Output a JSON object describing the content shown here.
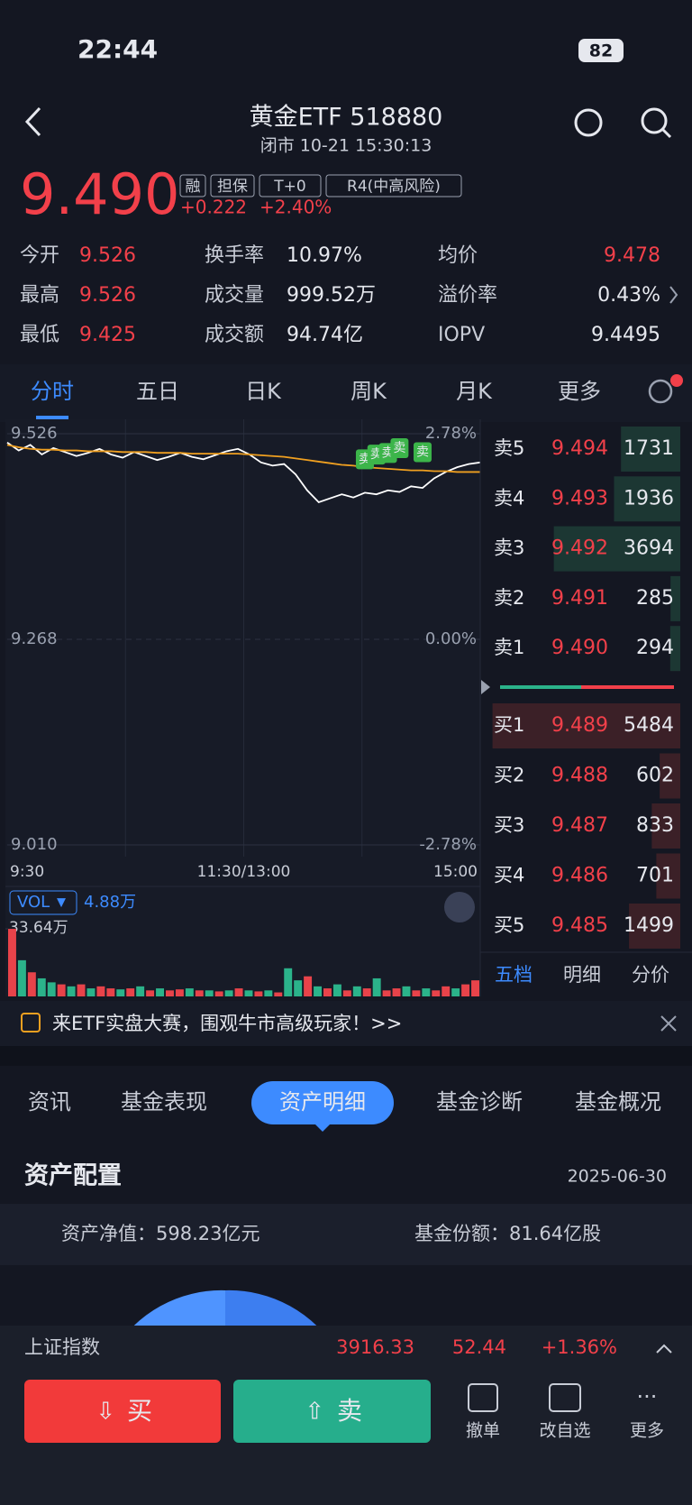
{
  "status": {
    "time": "22:44",
    "battery": "82"
  },
  "header": {
    "title": "黄金ETF 518880",
    "subtitle": "闭市 10-21 15:30:13"
  },
  "quote": {
    "price": "9.490",
    "change": "+0.222",
    "change_pct": "+2.40%",
    "tags": [
      "融",
      "担保",
      "T+0",
      "R4(中高风险)"
    ]
  },
  "stats": [
    {
      "label": "今开",
      "value": "9.526"
    },
    {
      "label": "换手率",
      "value": "10.97%"
    },
    {
      "label": "均价",
      "value": "9.478"
    },
    {
      "label": "最高",
      "value": "9.526"
    },
    {
      "label": "成交量",
      "value": "999.52万"
    },
    {
      "label": "溢价率",
      "value": "0.43%"
    },
    {
      "label": "最低",
      "value": "9.425"
    },
    {
      "label": "成交额",
      "value": "94.74亿"
    },
    {
      "label": "IOPV",
      "value": "9.4495"
    }
  ],
  "tabs": [
    "分时",
    "五日",
    "日K",
    "周K",
    "月K",
    "更多"
  ],
  "chart_data": [
    {
      "type": "line",
      "ylim": [
        9.01,
        9.526
      ],
      "yticks": [
        {
          "value": 9.526,
          "label": "9.526"
        },
        {
          "value": 9.268,
          "label": "9.268"
        },
        {
          "value": 9.01,
          "label": "9.010"
        }
      ],
      "y2lim": [
        -2.78,
        2.78
      ],
      "y2ticks": [
        {
          "value": 2.78,
          "label": "2.78%"
        },
        {
          "value": 0,
          "label": "0.00%"
        },
        {
          "value": -2.78,
          "label": "-2.78%"
        }
      ],
      "x_labels": [
        "9:30",
        "11:30/13:00",
        "15:00"
      ],
      "series": [
        {
          "color": "#ffffff",
          "values": [
            9.515,
            9.505,
            9.512,
            9.5,
            9.508,
            9.503,
            9.498,
            9.502,
            9.507,
            9.5,
            9.496,
            9.503,
            9.498,
            9.493,
            9.497,
            9.502,
            9.497,
            9.494,
            9.499,
            9.504,
            9.507,
            9.5,
            9.49,
            9.486,
            9.488,
            9.475,
            9.455,
            9.44,
            9.445,
            9.45,
            9.446,
            9.452,
            9.45,
            9.455,
            9.453,
            9.46,
            9.458,
            9.47,
            9.478,
            9.484,
            9.488,
            9.49
          ]
        },
        {
          "color": "#f0a020",
          "values": [
            9.512,
            9.509,
            9.507,
            9.506,
            9.506,
            9.505,
            9.505,
            9.504,
            9.504,
            9.504,
            9.503,
            9.503,
            9.503,
            9.502,
            9.502,
            9.502,
            9.501,
            9.501,
            9.501,
            9.501,
            9.501,
            9.5,
            9.499,
            9.498,
            9.497,
            9.495,
            9.493,
            9.491,
            9.489,
            9.487,
            9.486,
            9.484,
            9.483,
            9.482,
            9.481,
            9.48,
            9.48,
            9.479,
            9.479,
            9.478,
            9.478,
            9.478
          ]
        }
      ],
      "annotations": [
        {
          "label": "卖",
          "x": 31,
          "value": 9.478
        },
        {
          "label": "卖",
          "x": 32,
          "value": 9.484
        },
        {
          "label": "卖",
          "x": 33,
          "value": 9.486
        },
        {
          "label": "卖",
          "x": 34,
          "value": 9.492
        },
        {
          "label": "卖",
          "x": 36,
          "value": 9.487
        }
      ]
    },
    {
      "type": "bar",
      "title": "VOL",
      "subtitle": "4.88万",
      "ylim": [
        0,
        33.64
      ],
      "yticks": [
        {
          "value": 33.64,
          "label": "33.64万"
        }
      ],
      "values": [
        33.6,
        18,
        12,
        9,
        7,
        6,
        5,
        6,
        4,
        5,
        4,
        3.5,
        4,
        5,
        3,
        4,
        3,
        3.5,
        4,
        3,
        3,
        2.5,
        3,
        4,
        3,
        2.5,
        3,
        2,
        14,
        8,
        10,
        5,
        4,
        6,
        3,
        5,
        4,
        9,
        3,
        4,
        5,
        3,
        4,
        3,
        5,
        4,
        6,
        8
      ],
      "colors": [
        "#e8434a",
        "#2bb38a",
        "#e8434a",
        "#2bb38a",
        "#2bb38a",
        "#e8434a",
        "#2bb38a",
        "#e8434a",
        "#2bb38a",
        "#e8434a",
        "#e8434a",
        "#2bb38a",
        "#e8434a",
        "#2bb38a",
        "#e8434a",
        "#2bb38a",
        "#e8434a",
        "#e8434a",
        "#2bb38a",
        "#e8434a",
        "#2bb38a",
        "#e8434a",
        "#2bb38a",
        "#e8434a",
        "#2bb38a",
        "#e8434a",
        "#2bb38a",
        "#e8434a",
        "#2bb38a",
        "#2bb38a",
        "#e8434a",
        "#2bb38a",
        "#e8434a",
        "#2bb38a",
        "#e8434a",
        "#2bb38a",
        "#e8434a",
        "#2bb38a",
        "#e8434a",
        "#e8434a",
        "#2bb38a",
        "#e8434a",
        "#2bb38a",
        "#e8434a",
        "#e8434a",
        "#2bb38a",
        "#e8434a",
        "#e8434a"
      ]
    }
  ],
  "order_book": {
    "asks": [
      {
        "label": "卖5",
        "price": "9.494",
        "volume": 1731
      },
      {
        "label": "卖4",
        "price": "9.493",
        "volume": 1936
      },
      {
        "label": "卖3",
        "price": "9.492",
        "volume": 3694
      },
      {
        "label": "卖2",
        "price": "9.491",
        "volume": 285
      },
      {
        "label": "卖1",
        "price": "9.490",
        "volume": 294
      }
    ],
    "bids": [
      {
        "label": "买1",
        "price": "9.489",
        "volume": 5484
      },
      {
        "label": "买2",
        "price": "9.488",
        "volume": 602
      },
      {
        "label": "买3",
        "price": "9.487",
        "volume": 833
      },
      {
        "label": "买4",
        "price": "9.486",
        "volume": 701
      },
      {
        "label": "买5",
        "price": "9.485",
        "volume": 1499
      }
    ],
    "tabs": [
      "五档",
      "明细",
      "分价"
    ]
  },
  "banner": "来ETF实盘大赛，围观牛市高级玩家！>>",
  "section_tabs": [
    "资讯",
    "基金表现",
    "资产明细",
    "基金诊断",
    "基金概况"
  ],
  "assets": {
    "title": "资产配置",
    "date": "2025-06-30",
    "net_asset": "资产净值：598.23亿元",
    "shares": "基金份额：81.64亿股"
  },
  "index_bar": {
    "name": "上证指数",
    "value": "3916.33",
    "change": "52.44",
    "change_pct": "+1.36%"
  },
  "actions": [
    "买",
    "卖",
    "撤单",
    "改自选",
    "更多"
  ]
}
